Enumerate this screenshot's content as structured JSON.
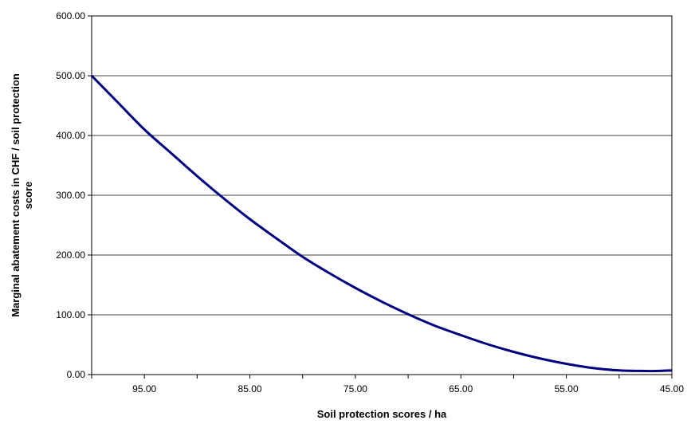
{
  "chart_data": {
    "type": "line",
    "title": "",
    "xlabel": "Soil protection scores / ha",
    "ylabel": "Marginal abatement costs in CHF / soil protection score",
    "ylabel_lines": [
      "Marginal abatement costs in CHF / soil protection",
      "score"
    ],
    "x_reversed": true,
    "xlim": [
      100,
      45
    ],
    "ylim": [
      0,
      600
    ],
    "x_ticks": [
      95,
      85,
      75,
      65,
      55,
      45
    ],
    "x_tick_labels": [
      "95.00",
      "85.00",
      "75.00",
      "65.00",
      "55.00",
      "45.00"
    ],
    "y_ticks": [
      0,
      100,
      200,
      300,
      400,
      500,
      600
    ],
    "y_tick_labels": [
      "0.00",
      "100.00",
      "200.00",
      "300.00",
      "400.00",
      "500.00",
      "600.00"
    ],
    "grid": "horizontal",
    "line_color": "#000080",
    "series": [
      {
        "x": [
          100,
          97.5,
          95,
          92.5,
          90,
          87.5,
          85,
          82.5,
          80,
          77.5,
          75,
          72.5,
          70,
          67.5,
          65,
          62.5,
          60,
          57.5,
          55,
          52.5,
          50,
          47.5,
          46.5,
          45
        ],
        "y": [
          500,
          455,
          410,
          371,
          332,
          295,
          260,
          228,
          197,
          170,
          145,
          122,
          101,
          82,
          66,
          51,
          38,
          27,
          18,
          11,
          7,
          6,
          6,
          7
        ]
      }
    ]
  }
}
